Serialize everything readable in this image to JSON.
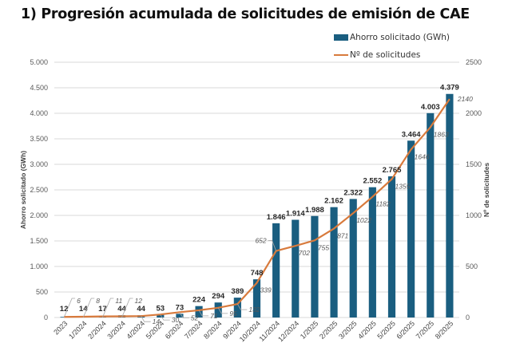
{
  "chart_data": {
    "type": "bar",
    "title": "1) Progresión acumulada de solicitudes de emisión de CAE",
    "categories": [
      "2023",
      "1/2024",
      "2/2024",
      "3/2024",
      "4/2024",
      "5/2024",
      "6/2024",
      "7/2024",
      "8/2024",
      "9/2024",
      "10/2024",
      "11/2024",
      "12/2024",
      "1/2025",
      "2/2025",
      "3/2025",
      "4/2025",
      "5/2025",
      "6/2025",
      "7/2025",
      "8/2025"
    ],
    "series": [
      {
        "name": "Ahorro solicitado (GWh)",
        "type": "bar",
        "axis": "left",
        "color": "#1a5e80",
        "values": [
          12,
          14,
          17,
          44,
          44,
          53,
          73,
          224,
          294,
          389,
          748,
          1846,
          1914,
          1988,
          2162,
          2322,
          2552,
          2765,
          3464,
          4003,
          4379
        ],
        "labels": [
          "12",
          "14",
          "17",
          "44",
          "44",
          "53",
          "73",
          "224",
          "294",
          "389",
          "748",
          "1.846",
          "1.914",
          "1.988",
          "2.162",
          "2.322",
          "2.552",
          "2.765",
          "3.464",
          "4.003",
          "4.379"
        ]
      },
      {
        "name": "Nº de solicitudes",
        "type": "line",
        "axis": "right",
        "color": "#d87a3c",
        "values": [
          6,
          8,
          11,
          12,
          14,
          30,
          52,
          71,
          95,
          132,
          339,
          652,
          702,
          755,
          871,
          1022,
          1182,
          1355,
          1646,
          1863,
          2140
        ],
        "labels": [
          "6",
          "8",
          "11",
          "12",
          "14",
          "30",
          "52",
          "71",
          "95",
          "132",
          "339",
          "652",
          "702",
          "755",
          "871",
          "1022",
          "1182",
          "1355",
          "1646",
          "1863",
          "2140"
        ]
      }
    ],
    "ylabel": "Ahorro solicitado (GWh)",
    "ylabel_right": "Nº de solicitudes",
    "xlabel": "",
    "ylim": [
      0,
      5000
    ],
    "ylim_right": [
      0,
      2500
    ],
    "yticks": [
      "0",
      "500",
      "1.000",
      "1.500",
      "2.000",
      "2.500",
      "3.000",
      "3.500",
      "4.000",
      "4.500",
      "5.000"
    ],
    "yticks_right": [
      "0",
      "500",
      "1000",
      "1500",
      "2000",
      "2500"
    ],
    "grid": true,
    "legend": "top-right"
  }
}
